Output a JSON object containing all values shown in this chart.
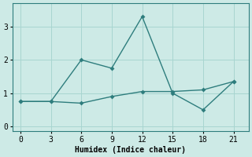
{
  "line1_x": [
    0,
    3,
    6,
    9,
    12,
    15,
    18,
    21
  ],
  "line1_y": [
    0.75,
    0.75,
    2.0,
    1.75,
    3.3,
    1.0,
    0.5,
    1.35
  ],
  "line2_x": [
    0,
    3,
    6,
    9,
    12,
    15,
    18,
    21
  ],
  "line2_y": [
    0.75,
    0.75,
    0.7,
    0.9,
    1.05,
    1.05,
    1.1,
    1.35
  ],
  "line_color": "#2e7d7d",
  "bg_color": "#cdeae6",
  "grid_color": "#a8d5d0",
  "xlabel": "Humidex (Indice chaleur)",
  "xlim": [
    -0.8,
    22.5
  ],
  "ylim": [
    -0.15,
    3.7
  ],
  "xticks": [
    0,
    3,
    6,
    9,
    12,
    15,
    18,
    21
  ],
  "yticks": [
    0,
    1,
    2,
    3
  ],
  "xlabel_fontsize": 7.0,
  "tick_fontsize": 7.0,
  "linewidth": 1.0,
  "markersize": 3.0
}
